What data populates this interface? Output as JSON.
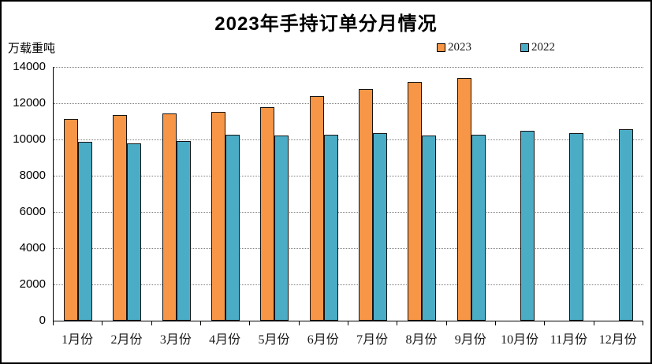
{
  "window": {
    "background": "#ffffff",
    "frame_border_color": "#000000"
  },
  "header": {
    "title": "2023年手持订单分月情况",
    "y_unit_label": "万载重吨"
  },
  "chart_data": {
    "type": "bar",
    "title": "2023年手持订单分月情况",
    "ylabel": "万载重吨",
    "xlabel": "",
    "categories": [
      "1月份",
      "2月份",
      "3月份",
      "4月份",
      "5月份",
      "6月份",
      "7月份",
      "8月份",
      "9月份",
      "10月份",
      "11月份",
      "12月份"
    ],
    "series": [
      {
        "name": "2023",
        "color": "#F79646",
        "values": [
          11109,
          11362,
          11452,
          11521,
          11799,
          12377,
          12790,
          13155,
          13393,
          null,
          null,
          null
        ]
      },
      {
        "name": "2022",
        "color": "#4BACC6",
        "values": [
          9868,
          9798,
          9927,
          10247,
          10223,
          10274,
          10366,
          10220,
          10264,
          10458,
          10340,
          10557
        ]
      }
    ],
    "ylim": [
      0,
      14000
    ],
    "yticks": [
      0,
      2000,
      4000,
      6000,
      8000,
      10000,
      12000,
      14000
    ],
    "grid": "horizontal-dotted",
    "gridline_color": "#808080",
    "bar_border_color": "#141414",
    "axis_color": "#000000",
    "legend_position": "top-right",
    "legend_labels": [
      "2023",
      "2022"
    ]
  }
}
